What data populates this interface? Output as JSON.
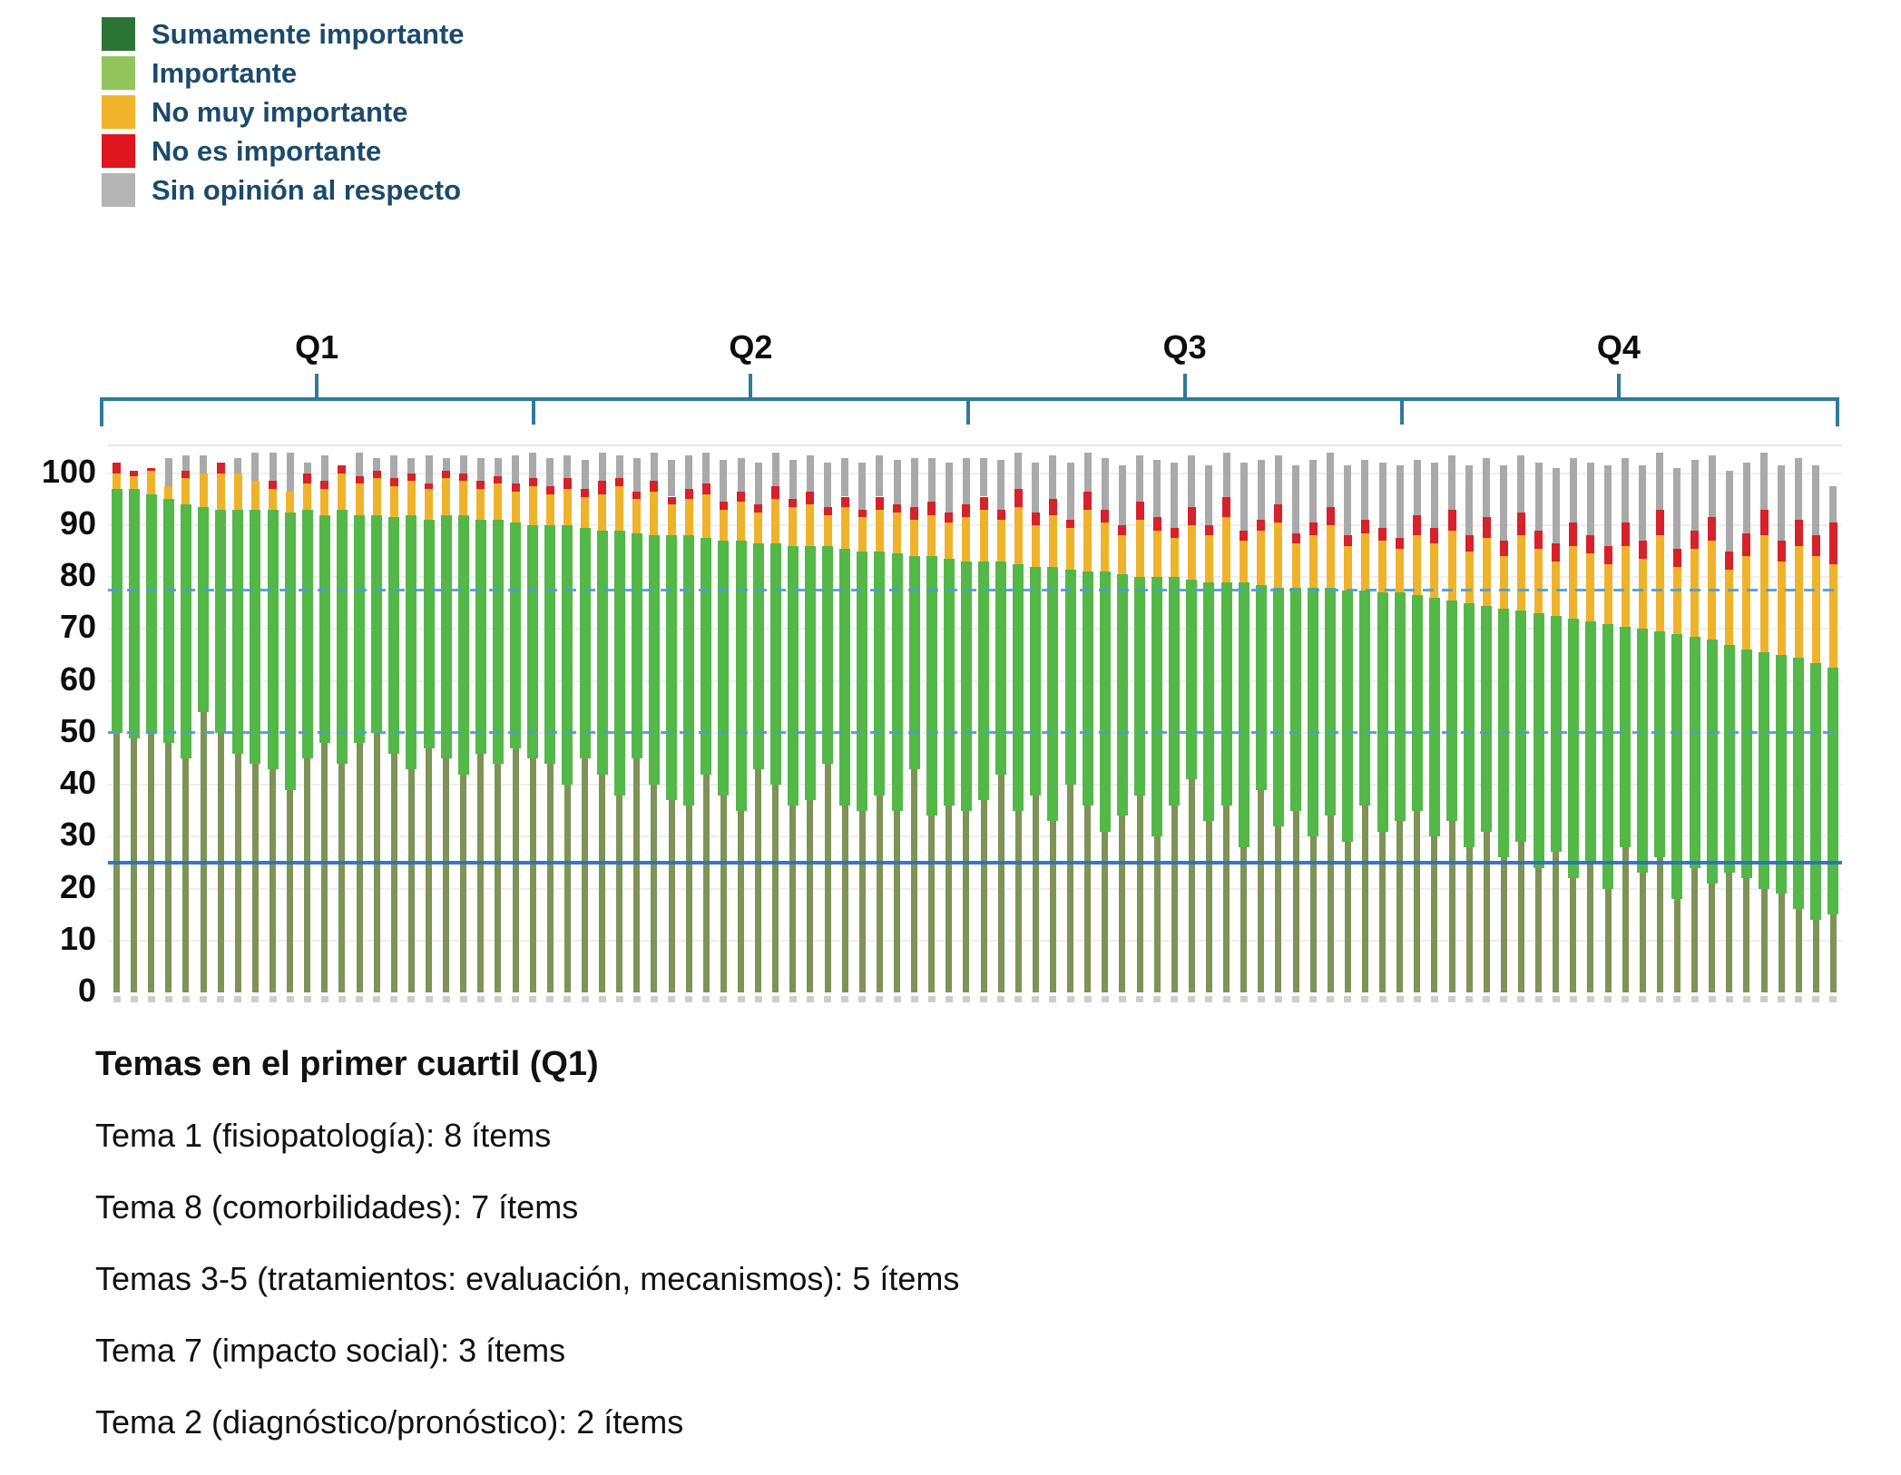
{
  "legend": {
    "items": [
      {
        "label": "Sumamente importante",
        "color": "#2c7434"
      },
      {
        "label": "Importante",
        "color": "#92c55c"
      },
      {
        "label": "No muy importante",
        "color": "#f1b42a"
      },
      {
        "label": "No es importante",
        "color": "#e0161f"
      },
      {
        "label": "Sin opinión al respecto",
        "color": "#b4b4b4"
      }
    ]
  },
  "chart_data": {
    "type": "bar",
    "stacked": true,
    "units": "percent",
    "n_bars": 100,
    "series_order": [
      "Sumamente importante",
      "Importante",
      "No muy importante",
      "No es importante",
      "Sin opinión al respecto"
    ],
    "encoding": "cumulative_tops: each array gives the cumulative percentage at the top of that series for bars 1..100, ordered left to right (items sorted into quartiles Q1-Q4)",
    "quartiles": [
      {
        "label": "Q1"
      },
      {
        "label": "Q2"
      },
      {
        "label": "Q3"
      },
      {
        "label": "Q4"
      }
    ],
    "yticks": [
      0,
      10,
      20,
      30,
      40,
      50,
      60,
      70,
      80,
      90,
      100
    ],
    "ylim": [
      0,
      105
    ],
    "reference_lines": [
      {
        "value": 77.5,
        "style": "dashed",
        "color": "#4e9cd8"
      },
      {
        "value": 50,
        "style": "dashed",
        "color": "#4e9cd8"
      },
      {
        "value": 25,
        "style": "solid",
        "color": "#2e6fc0"
      }
    ],
    "bars": {
      "sumamente_top": [
        50,
        49,
        50,
        48,
        45,
        54,
        50,
        46,
        44,
        43,
        39,
        45,
        48,
        44,
        48,
        50,
        46,
        43,
        47,
        45,
        42,
        46,
        44,
        47,
        45,
        44,
        40,
        45,
        42,
        38,
        45,
        40,
        37,
        36,
        42,
        38,
        35,
        43,
        40,
        36,
        37,
        44,
        36,
        35,
        38,
        35,
        43,
        34,
        36,
        35,
        37,
        42,
        35,
        38,
        33,
        40,
        36,
        31,
        34,
        38,
        30,
        36,
        41,
        33,
        36,
        28,
        39,
        32,
        35,
        30,
        34,
        29,
        36,
        31,
        33,
        35,
        30,
        33,
        28,
        31,
        26,
        29,
        24,
        27,
        22,
        25,
        20,
        28,
        23,
        26,
        18,
        24,
        21,
        23,
        22,
        20,
        19,
        16,
        14,
        15
      ],
      "importante_top": [
        97,
        97,
        96,
        95,
        94,
        93.5,
        93,
        93,
        93,
        93,
        92.5,
        93,
        92,
        93,
        92,
        92,
        91.5,
        92,
        91,
        92,
        92,
        91,
        91,
        90.5,
        90,
        90,
        90,
        89.5,
        89,
        89,
        88.5,
        88,
        88,
        88,
        87.5,
        87,
        87,
        86.5,
        86.5,
        86,
        86,
        86,
        85.5,
        85,
        85,
        84.5,
        84,
        84,
        83.5,
        83,
        83,
        83,
        82.5,
        82,
        82,
        81.5,
        81,
        81,
        80.5,
        80,
        80,
        80,
        79.5,
        79,
        79,
        79,
        78.5,
        78,
        78,
        78,
        78,
        77.5,
        77.5,
        77,
        77,
        76.5,
        76,
        75.5,
        75,
        74.5,
        74,
        73.5,
        73,
        72.5,
        72,
        71.5,
        71,
        70.5,
        70,
        69.5,
        69,
        68.5,
        68,
        67,
        66,
        65.5,
        65,
        64.5,
        63.5,
        62.5
      ],
      "no_muy_top": [
        100,
        99.5,
        100.5,
        97.5,
        99,
        100,
        100,
        100,
        98.5,
        97,
        96.5,
        98,
        97,
        100,
        98,
        99,
        97.5,
        98.5,
        97,
        99,
        98.5,
        97,
        98,
        96.5,
        97.5,
        96,
        97,
        95.5,
        96,
        97.5,
        95,
        96.5,
        94,
        95,
        96,
        93,
        94.5,
        92.5,
        95,
        93.5,
        94,
        92,
        93.5,
        91.5,
        93,
        92.5,
        91,
        92,
        90.5,
        91.5,
        93,
        91,
        93.5,
        90,
        92,
        89.5,
        93,
        90.5,
        88,
        91,
        89,
        87.5,
        90,
        88,
        91.5,
        87,
        89,
        90.5,
        86.5,
        88,
        90,
        86,
        88.5,
        87,
        85.5,
        88,
        86.5,
        89,
        85,
        87.5,
        84,
        88,
        85.5,
        83,
        86,
        84.5,
        82.5,
        86,
        83.5,
        88,
        82,
        85.5,
        87,
        81.5,
        84,
        88,
        83,
        86,
        84,
        82.5
      ],
      "no_es_top": [
        102,
        100.5,
        101,
        97.5,
        100.5,
        100,
        102,
        100,
        98.5,
        98.5,
        96.5,
        100,
        98.5,
        101.5,
        99.5,
        100.5,
        99,
        100,
        98,
        100.5,
        100,
        98.5,
        99.5,
        98,
        99,
        97.5,
        99,
        97,
        98.5,
        99,
        96.5,
        98.5,
        95.5,
        97,
        98,
        94.5,
        96.5,
        94,
        97.5,
        95,
        96.5,
        93.5,
        95.5,
        93,
        95.5,
        94,
        93.5,
        94.5,
        92.5,
        94,
        95.5,
        93,
        97,
        92.5,
        95,
        91,
        96.5,
        93,
        90,
        94.5,
        91.5,
        89.5,
        93.5,
        90,
        95.5,
        89,
        91,
        94,
        88.5,
        90.5,
        93.5,
        88,
        91,
        89.5,
        87.5,
        92,
        89.5,
        93,
        88,
        91.5,
        87,
        92.5,
        89,
        86.5,
        90.5,
        88,
        86,
        90.5,
        87,
        93,
        85.5,
        89,
        91.5,
        85,
        88.5,
        93,
        87,
        91,
        88,
        90.5
      ],
      "total_top": [
        102,
        100.5,
        101,
        103,
        103.5,
        103.5,
        102,
        103,
        104,
        104,
        104,
        102,
        103.5,
        101.5,
        104,
        103,
        103.5,
        103,
        103.5,
        103,
        103.5,
        103,
        103,
        103.5,
        104,
        103,
        103.5,
        102.5,
        104,
        103.5,
        103,
        104,
        102.5,
        103.5,
        104,
        102.5,
        103,
        102,
        104,
        102.5,
        103.5,
        102,
        103,
        102,
        103.5,
        102.5,
        103,
        103,
        102,
        103,
        103,
        102.5,
        104,
        102,
        103.5,
        102,
        104,
        103,
        101.5,
        103.5,
        102.5,
        102,
        103.5,
        101.5,
        104,
        102,
        102.5,
        103.5,
        101.5,
        102.5,
        104,
        101.5,
        102.5,
        102,
        101.5,
        102.5,
        102,
        103.5,
        101.5,
        103,
        101.5,
        103.5,
        102,
        101,
        103,
        102,
        101.5,
        103,
        101.5,
        104,
        101,
        102.5,
        103.5,
        100.5,
        102,
        104,
        101.5,
        103,
        101.5,
        97.5
      ]
    },
    "bar_colors": {
      "sumamente": "#7e9356",
      "importante": "#53b848",
      "no_muy": "#efb32b",
      "no_es": "#d7212b",
      "sin_opinion": "#a9a9a9"
    },
    "bracket_color": "#2e7a99",
    "gridline_color": "#efefef"
  },
  "footer": {
    "title": "Temas en el primer cuartil (Q1)",
    "lines": [
      "Tema 1 (fisiopatología): 8 ítems",
      "Tema 8 (comorbilidades): 7 ítems",
      "Temas 3-5 (tratamientos: evaluación, mecanismos): 5 ítems",
      "Tema 7 (impacto social): 3 ítems",
      "Tema 2 (diagnóstico/pronóstico): 2 ítems"
    ]
  }
}
